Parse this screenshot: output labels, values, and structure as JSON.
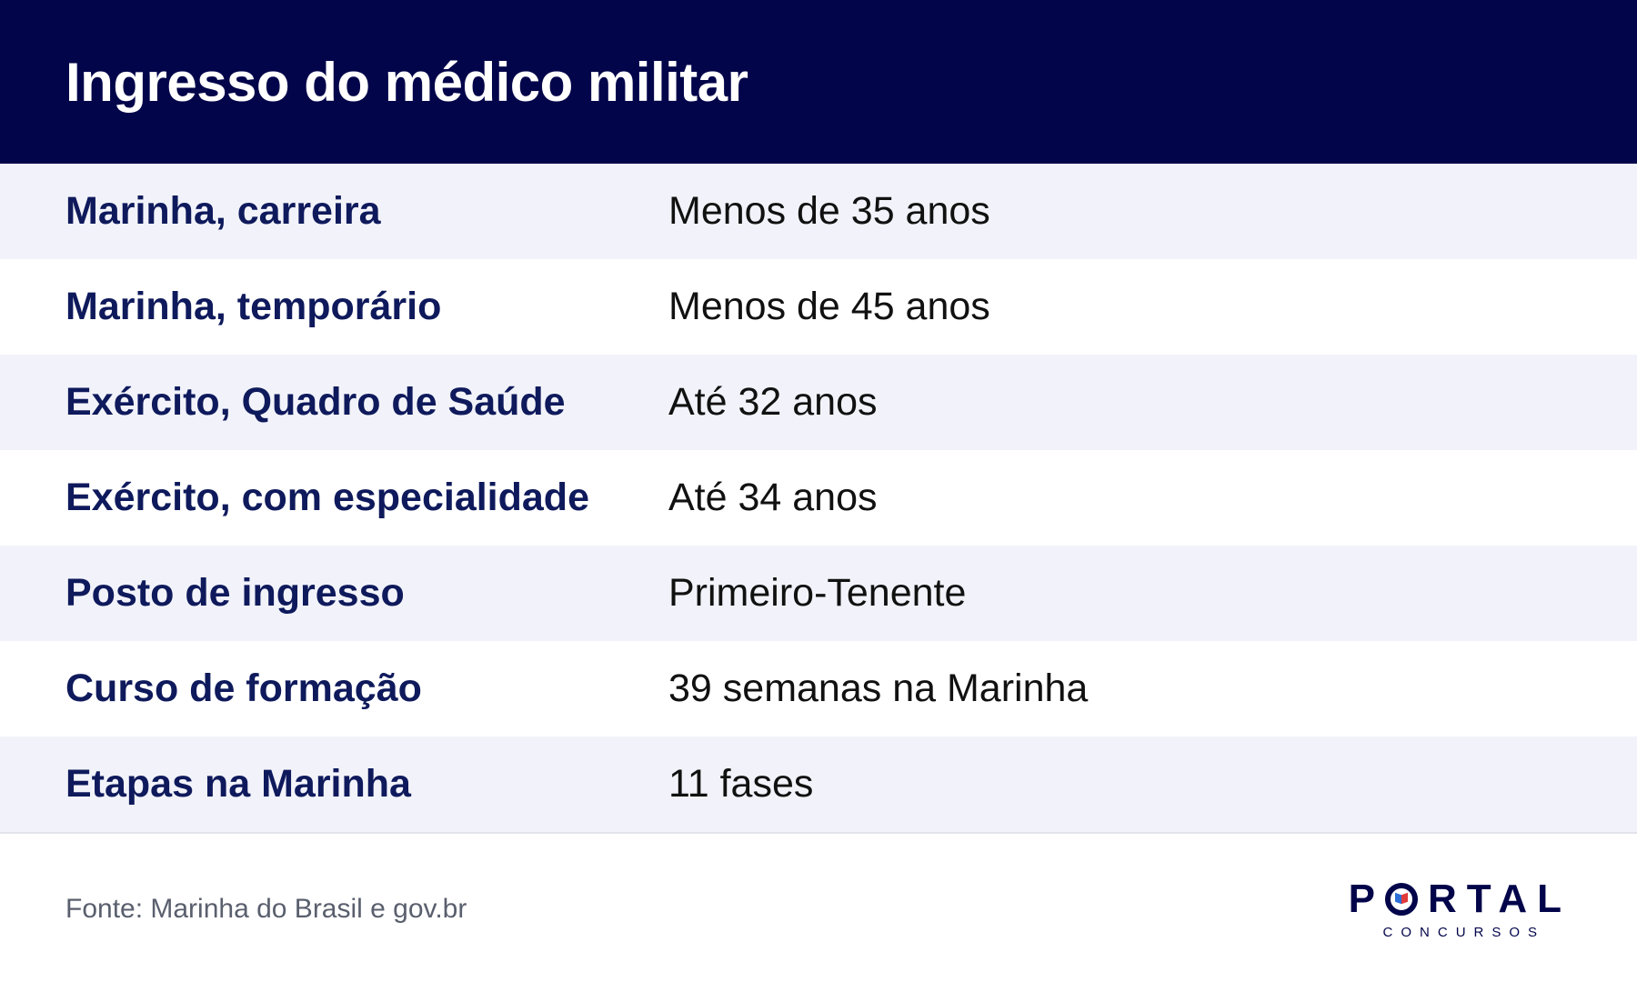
{
  "header": {
    "title": "Ingresso do médico militar"
  },
  "rows": [
    {
      "label": "Marinha, carreira",
      "value": "Menos de 35 anos"
    },
    {
      "label": "Marinha, temporário",
      "value": "Menos de 45 anos"
    },
    {
      "label": "Exército, Quadro de Saúde",
      "value": "Até 32 anos"
    },
    {
      "label": "Exército, com especialidade",
      "value": "Até 34 anos"
    },
    {
      "label": "Posto de ingresso",
      "value": "Primeiro-Tenente"
    },
    {
      "label": "Curso de formação",
      "value": "39 semanas na Marinha"
    },
    {
      "label": "Etapas na Marinha",
      "value": "11 fases"
    }
  ],
  "footer": {
    "source": "Fonte: Marinha do Brasil e gov.br",
    "logo_main_first": "P",
    "logo_main_rest": "RTAL",
    "logo_sub": "CONCURSOS"
  },
  "colors": {
    "header_bg": "#03054a",
    "label_text": "#0f1a5c",
    "row_shade": "#f2f3fa",
    "logo_accent_blue": "#2b6fd6",
    "logo_accent_red": "#e03a3a"
  }
}
